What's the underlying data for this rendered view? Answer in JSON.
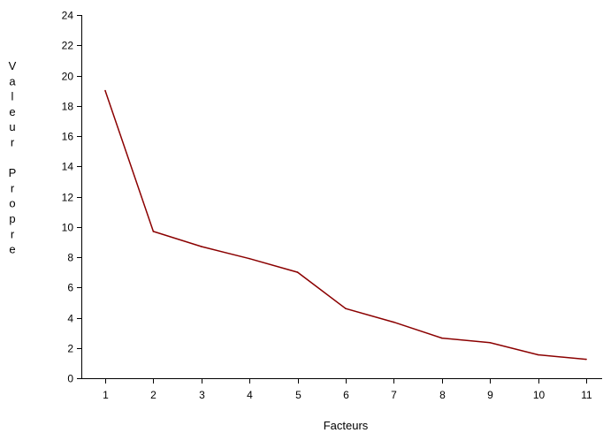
{
  "chart_data": {
    "type": "line",
    "title": "",
    "xlabel": "Facteurs",
    "ylabel": "Valeur Propre",
    "x": [
      1,
      2,
      3,
      4,
      5,
      6,
      7,
      8,
      9,
      10,
      11
    ],
    "series": [
      {
        "values": [
          19.0,
          9.7,
          8.7,
          7.9,
          7.0,
          4.6,
          3.7,
          2.65,
          2.35,
          1.55,
          1.25
        ]
      }
    ],
    "ylim": [
      0,
      24
    ],
    "ytick_labels": [
      "0",
      "2",
      "4",
      "6",
      "8",
      "10",
      "12",
      "14",
      "16",
      "18",
      "20",
      "22",
      "24"
    ],
    "xtick_labels": [
      "1",
      "2",
      "3",
      "4",
      "5",
      "6",
      "7",
      "8",
      "9",
      "10",
      "11"
    ],
    "grid": false,
    "legend": "none",
    "line_color": "#8b0000",
    "axis_color": "#000000"
  }
}
